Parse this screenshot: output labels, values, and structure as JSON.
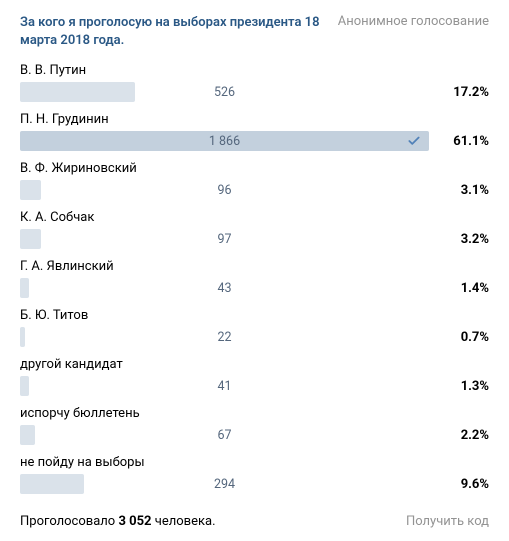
{
  "header": {
    "title": "За кого я проголосую на выборах президента 18 марта 2018 года.",
    "anon": "Анонимное голосование"
  },
  "colors": {
    "bar": "#dae2ea",
    "bar_selected": "#c3d0dd",
    "title": "#2a5885",
    "muted": "#939393",
    "count": "#55677d",
    "check": "#5181b8"
  },
  "bar_full_width_pct": 100,
  "max_percent": 61.1,
  "options": [
    {
      "label": "В. В. Путин",
      "count": "526",
      "percent": "17.2%",
      "width": 28.2,
      "selected": false
    },
    {
      "label": "П. Н. Грудинин",
      "count": "1 866",
      "percent": "61.1%",
      "width": 100,
      "selected": true
    },
    {
      "label": "В. Ф. Жириновский",
      "count": "96",
      "percent": "3.1%",
      "width": 5.1,
      "selected": false
    },
    {
      "label": "К. А. Собчак",
      "count": "97",
      "percent": "3.2%",
      "width": 5.2,
      "selected": false
    },
    {
      "label": "Г. А. Явлинский",
      "count": "43",
      "percent": "1.4%",
      "width": 2.3,
      "selected": false
    },
    {
      "label": "Б. Ю. Титов",
      "count": "22",
      "percent": "0.7%",
      "width": 1.2,
      "selected": false
    },
    {
      "label": "другой кандидат",
      "count": "41",
      "percent": "1.3%",
      "width": 2.1,
      "selected": false
    },
    {
      "label": "испорчу бюллетень",
      "count": "67",
      "percent": "2.2%",
      "width": 3.6,
      "selected": false
    },
    {
      "label": "не пойду на выборы",
      "count": "294",
      "percent": "9.6%",
      "width": 15.7,
      "selected": false
    }
  ],
  "footer": {
    "total_prefix": "Проголосовало ",
    "total_count": "3 052",
    "total_suffix": " человека.",
    "get_code": "Получить код"
  }
}
